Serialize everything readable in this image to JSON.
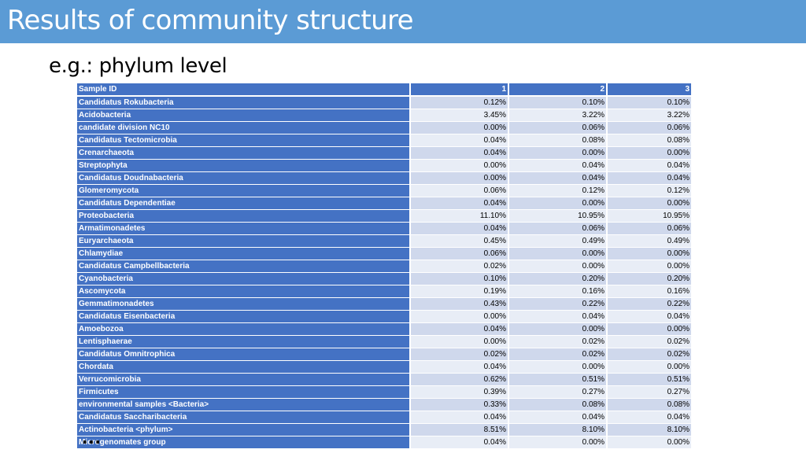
{
  "slide": {
    "title": "Results of community structure",
    "subtitle": "e.g.: phylum level",
    "ellipsis": "…"
  },
  "colors": {
    "title_bar": "#5b9bd5",
    "header_cell": "#4472c4",
    "row_odd": "#cfd8ec",
    "row_even": "#e8edf6"
  },
  "table": {
    "headers": [
      "Sample ID",
      "1",
      "2",
      "3"
    ],
    "rows": [
      [
        "Candidatus Rokubacteria",
        "0.12%",
        "0.10%",
        "0.10%"
      ],
      [
        "Acidobacteria",
        "3.45%",
        "3.22%",
        "3.22%"
      ],
      [
        "candidate division NC10",
        "0.00%",
        "0.06%",
        "0.06%"
      ],
      [
        "Candidatus Tectomicrobia",
        "0.04%",
        "0.08%",
        "0.08%"
      ],
      [
        "Crenarchaeota",
        "0.04%",
        "0.00%",
        "0.00%"
      ],
      [
        "Streptophyta",
        "0.00%",
        "0.04%",
        "0.04%"
      ],
      [
        "Candidatus Doudnabacteria",
        "0.00%",
        "0.04%",
        "0.04%"
      ],
      [
        "Glomeromycota",
        "0.06%",
        "0.12%",
        "0.12%"
      ],
      [
        "Candidatus Dependentiae",
        "0.04%",
        "0.00%",
        "0.00%"
      ],
      [
        "Proteobacteria",
        "11.10%",
        "10.95%",
        "10.95%"
      ],
      [
        "Armatimonadetes",
        "0.04%",
        "0.06%",
        "0.06%"
      ],
      [
        "Euryarchaeota",
        "0.45%",
        "0.49%",
        "0.49%"
      ],
      [
        "Chlamydiae",
        "0.06%",
        "0.00%",
        "0.00%"
      ],
      [
        "Candidatus Campbellbacteria",
        "0.02%",
        "0.00%",
        "0.00%"
      ],
      [
        "Cyanobacteria",
        "0.10%",
        "0.20%",
        "0.20%"
      ],
      [
        "Ascomycota",
        "0.19%",
        "0.16%",
        "0.16%"
      ],
      [
        "Gemmatimonadetes",
        "0.43%",
        "0.22%",
        "0.22%"
      ],
      [
        "Candidatus Eisenbacteria",
        "0.00%",
        "0.04%",
        "0.04%"
      ],
      [
        "Amoebozoa",
        "0.04%",
        "0.00%",
        "0.00%"
      ],
      [
        "Lentisphaerae",
        "0.00%",
        "0.02%",
        "0.02%"
      ],
      [
        "Candidatus Omnitrophica",
        "0.02%",
        "0.02%",
        "0.02%"
      ],
      [
        "Chordata",
        "0.04%",
        "0.00%",
        "0.00%"
      ],
      [
        "Verrucomicrobia",
        "0.62%",
        "0.51%",
        "0.51%"
      ],
      [
        "Firmicutes",
        "0.39%",
        "0.27%",
        "0.27%"
      ],
      [
        "environmental samples <Bacteria>",
        "0.33%",
        "0.08%",
        "0.08%"
      ],
      [
        "Candidatus Saccharibacteria",
        "0.04%",
        "0.04%",
        "0.04%"
      ],
      [
        "Actinobacteria <phylum>",
        "8.51%",
        "8.10%",
        "8.10%"
      ],
      [
        "Microgenomates group",
        "0.04%",
        "0.00%",
        "0.00%"
      ]
    ]
  }
}
